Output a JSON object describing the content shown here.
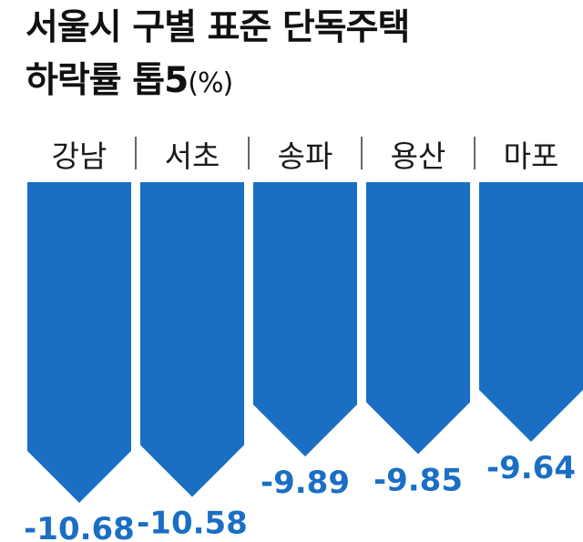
{
  "chart_data": {
    "type": "bar",
    "title_line1": "서울시 구별 표준 단독주택",
    "title_line2": "하락률 톱5",
    "title_unit": "(%)",
    "categories": [
      "강남",
      "서초",
      "송파",
      "용산",
      "마포"
    ],
    "values": [
      -10.68,
      -10.58,
      -9.89,
      -9.85,
      -9.64
    ],
    "value_labels": [
      "-10.68",
      "-10.58",
      "-9.89",
      "-9.85",
      "-9.64"
    ],
    "ylim": [
      0,
      -10.68
    ],
    "colors": {
      "bar": "#1a6fc4",
      "value_label": "#1a6fc4"
    },
    "legend": "none",
    "grid": false
  }
}
